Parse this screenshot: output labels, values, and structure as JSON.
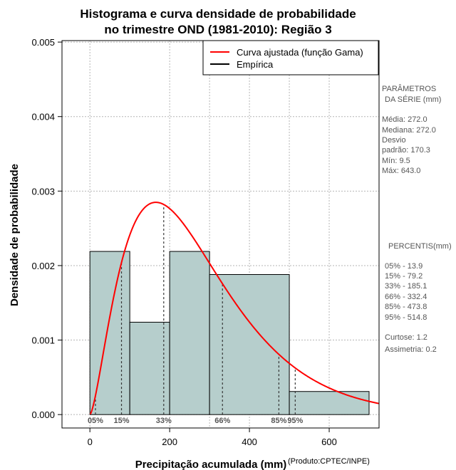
{
  "chart_data": {
    "type": "bar",
    "title_line1": "Histograma e curva densidade de probabilidade",
    "title_line2": "no trimestre OND (1981-2010): Região 3",
    "xlabel": "Precipitação acumulada (mm)",
    "ylabel": "Densidade de probabilidade",
    "credit": "(Produto:CPTEC/INPE)",
    "xlim": [
      -70,
      725
    ],
    "ylim": [
      -0.00018,
      0.00502
    ],
    "x_ticks": [
      0,
      200,
      400,
      600
    ],
    "x_tick_labels": [
      "0",
      "200",
      "400",
      "600"
    ],
    "y_ticks": [
      0.0,
      0.001,
      0.002,
      0.003,
      0.004,
      0.005
    ],
    "y_tick_labels": [
      "0.000",
      "0.001",
      "0.002",
      "0.003",
      "0.004",
      "0.005"
    ],
    "grid": true,
    "bar_color": "#b6cecc",
    "curve_color": "#ff0000",
    "histogram": [
      {
        "start": 0,
        "end": 100,
        "density": 0.00219
      },
      {
        "start": 100,
        "end": 200,
        "density": 0.00124
      },
      {
        "start": 200,
        "end": 300,
        "density": 0.00219
      },
      {
        "start": 300,
        "end": 500,
        "density": 0.00188
      },
      {
        "start": 500,
        "end": 700,
        "density": 0.00031
      }
    ],
    "gamma_fit": {
      "mean": 272.0,
      "sd": 170.3
    },
    "percentiles": [
      {
        "label": "05%",
        "value": 13.9
      },
      {
        "label": "15%",
        "value": 79.2
      },
      {
        "label": "33%",
        "value": 185.1
      },
      {
        "label": "66%",
        "value": 332.4
      },
      {
        "label": "85%",
        "value": 473.8
      },
      {
        "label": "95%",
        "value": 514.8
      }
    ],
    "legend": {
      "position": "top-right",
      "entries": [
        {
          "label": "Curva ajustada (função Gama)",
          "color": "#ff0000"
        },
        {
          "label": "Empírica",
          "color": "#000000"
        }
      ]
    }
  },
  "side_panel": {
    "params_title_1": "PARÂMETROS",
    "params_title_2": "DA SÉRIE (mm)",
    "params": [
      "Média:  272.0",
      "Mediana:  272.0",
      "Desvio",
      "padrão:  170.3",
      "Mín:  9.5",
      "Máx:  643.0"
    ],
    "percentis_title": "PERCENTIS(mm)",
    "percentis": [
      "05% -  13.9",
      "15% -  79.2",
      "33% -  185.1",
      "66% -  332.4",
      "85% -  473.8",
      "95% -  514.8"
    ],
    "stats": [
      "Curtose:  1.2",
      "Assimetria:  0.2"
    ]
  }
}
